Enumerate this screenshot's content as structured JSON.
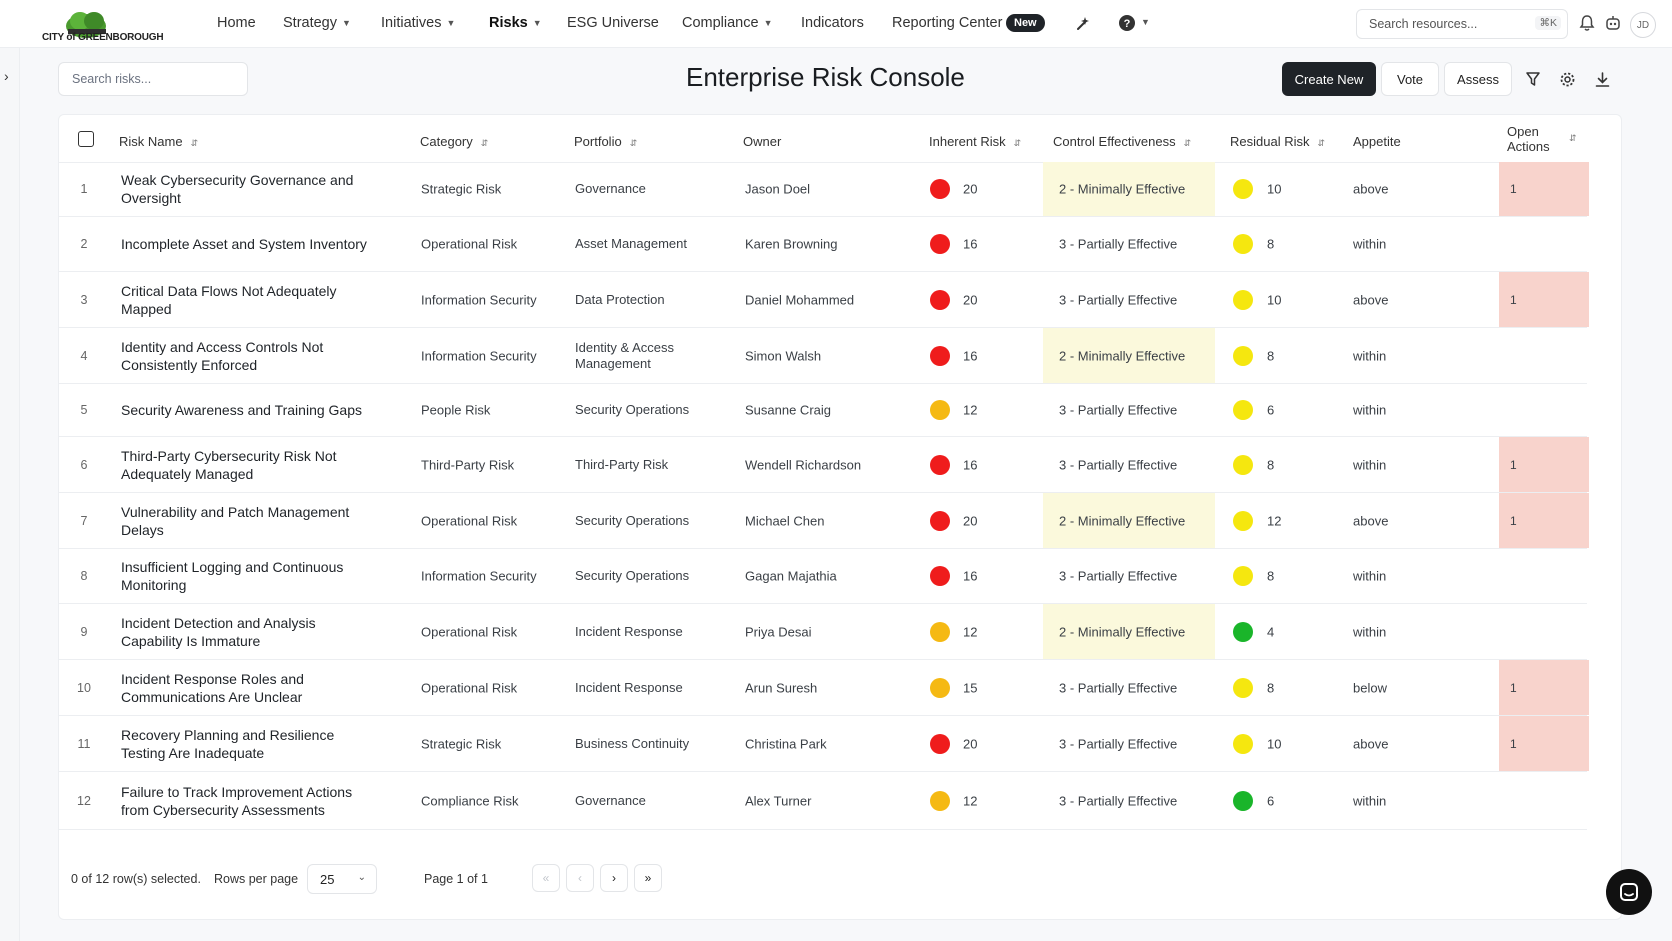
{
  "brand": {
    "logo_text": "CITY of GREENBOROUGH"
  },
  "nav": {
    "items": [
      {
        "label": "Home",
        "dropdown": false
      },
      {
        "label": "Strategy",
        "dropdown": true
      },
      {
        "label": "Initiatives",
        "dropdown": true
      },
      {
        "label": "Risks",
        "dropdown": true,
        "active": true
      },
      {
        "label": "ESG Universe",
        "dropdown": false
      },
      {
        "label": "Compliance",
        "dropdown": true
      },
      {
        "label": "Indicators",
        "dropdown": false
      },
      {
        "label": "Reporting Center",
        "dropdown": false
      }
    ],
    "new_badge": "New",
    "search_placeholder": "Search resources...",
    "search_shortcut": "⌘K",
    "avatar_initials": "JD"
  },
  "toolbar": {
    "search_placeholder": "Search risks...",
    "title": "Enterprise Risk Console",
    "create_label": "Create New",
    "vote_label": "Vote",
    "assess_label": "Assess"
  },
  "colors": {
    "red": "#ef1c1c",
    "orange": "#f5b913",
    "yellow": "#f5e70f",
    "green": "#1ab52a",
    "minimal_highlight": "#fbf9dc",
    "actions_highlight": "#f8d3cc"
  },
  "table": {
    "headers": {
      "risk_name": "Risk Name",
      "category": "Category",
      "portfolio": "Portfolio",
      "owner": "Owner",
      "inherent": "Inherent Risk",
      "control": "Control Effectiveness",
      "residual": "Residual Risk",
      "appetite": "Appetite",
      "actions_1": "Open",
      "actions_2": "Actions"
    },
    "rows": [
      {
        "num": "1",
        "name": "Weak Cybersecurity Governance and Oversight",
        "category": "Strategic Risk",
        "portfolio": "Governance",
        "owner": "Jason Doel",
        "inherent_color": "red",
        "inherent": "20",
        "control": "2 - Minimally Effective",
        "residual_color": "yellow",
        "residual": "10",
        "appetite": "above",
        "actions": "1"
      },
      {
        "num": "2",
        "name": "Incomplete Asset and System Inventory",
        "category": "Operational Risk",
        "portfolio": "Asset Management",
        "owner": "Karen Browning",
        "inherent_color": "red",
        "inherent": "16",
        "control": "3 - Partially Effective",
        "residual_color": "yellow",
        "residual": "8",
        "appetite": "within",
        "actions": ""
      },
      {
        "num": "3",
        "name": "Critical Data Flows Not Adequately Mapped",
        "category": "Information Security",
        "portfolio": "Data Protection",
        "owner": "Daniel Mohammed",
        "inherent_color": "red",
        "inherent": "20",
        "control": "3 - Partially Effective",
        "residual_color": "yellow",
        "residual": "10",
        "appetite": "above",
        "actions": "1"
      },
      {
        "num": "4",
        "name": "Identity and Access Controls Not Consistently Enforced",
        "category": "Information Security",
        "portfolio": "Identity & Access Management",
        "owner": "Simon Walsh",
        "inherent_color": "red",
        "inherent": "16",
        "control": "2 - Minimally Effective",
        "residual_color": "yellow",
        "residual": "8",
        "appetite": "within",
        "actions": ""
      },
      {
        "num": "5",
        "name": "Security Awareness and Training Gaps",
        "category": "People Risk",
        "portfolio": "Security Operations",
        "owner": "Susanne Craig",
        "inherent_color": "orange",
        "inherent": "12",
        "control": "3 - Partially Effective",
        "residual_color": "yellow",
        "residual": "6",
        "appetite": "within",
        "actions": ""
      },
      {
        "num": "6",
        "name": "Third-Party Cybersecurity Risk Not Adequately Managed",
        "category": "Third-Party Risk",
        "portfolio": "Third-Party Risk",
        "owner": "Wendell Richardson",
        "inherent_color": "red",
        "inherent": "16",
        "control": "3 - Partially Effective",
        "residual_color": "yellow",
        "residual": "8",
        "appetite": "within",
        "actions": "1"
      },
      {
        "num": "7",
        "name": "Vulnerability and Patch Management Delays",
        "category": "Operational Risk",
        "portfolio": "Security Operations",
        "owner": "Michael Chen",
        "inherent_color": "red",
        "inherent": "20",
        "control": "2 - Minimally Effective",
        "residual_color": "yellow",
        "residual": "12",
        "appetite": "above",
        "actions": "1"
      },
      {
        "num": "8",
        "name": "Insufficient Logging and Continuous Monitoring",
        "category": "Information Security",
        "portfolio": "Security Operations",
        "owner": "Gagan Majathia",
        "inherent_color": "red",
        "inherent": "16",
        "control": "3 - Partially Effective",
        "residual_color": "yellow",
        "residual": "8",
        "appetite": "within",
        "actions": ""
      },
      {
        "num": "9",
        "name": "Incident Detection and Analysis Capability Is Immature",
        "category": "Operational Risk",
        "portfolio": "Incident Response",
        "owner": "Priya Desai",
        "inherent_color": "orange",
        "inherent": "12",
        "control": "2 - Minimally Effective",
        "residual_color": "green",
        "residual": "4",
        "appetite": "within",
        "actions": ""
      },
      {
        "num": "10",
        "name": "Incident Response Roles and Communications Are Unclear",
        "category": "Operational Risk",
        "portfolio": "Incident Response",
        "owner": "Arun Suresh",
        "inherent_color": "orange",
        "inherent": "15",
        "control": "3 - Partially Effective",
        "residual_color": "yellow",
        "residual": "8",
        "appetite": "below",
        "actions": "1"
      },
      {
        "num": "11",
        "name": "Recovery Planning and Resilience Testing Are Inadequate",
        "category": "Strategic Risk",
        "portfolio": "Business Continuity",
        "owner": "Christina Park",
        "inherent_color": "red",
        "inherent": "20",
        "control": "3 - Partially Effective",
        "residual_color": "yellow",
        "residual": "10",
        "appetite": "above",
        "actions": "1"
      },
      {
        "num": "12",
        "name": "Failure to Track Improvement Actions from Cybersecurity Assessments",
        "category": "Compliance Risk",
        "portfolio": "Governance",
        "owner": "Alex Turner",
        "inherent_color": "orange",
        "inherent": "12",
        "control": "3 - Partially Effective",
        "residual_color": "green",
        "residual": "6",
        "appetite": "within",
        "actions": ""
      }
    ]
  },
  "footer": {
    "selected_text": "0 of 12 row(s) selected.",
    "rows_per_page_label": "Rows per page",
    "rows_per_page_value": "25",
    "page_text": "Page 1 of 1"
  }
}
